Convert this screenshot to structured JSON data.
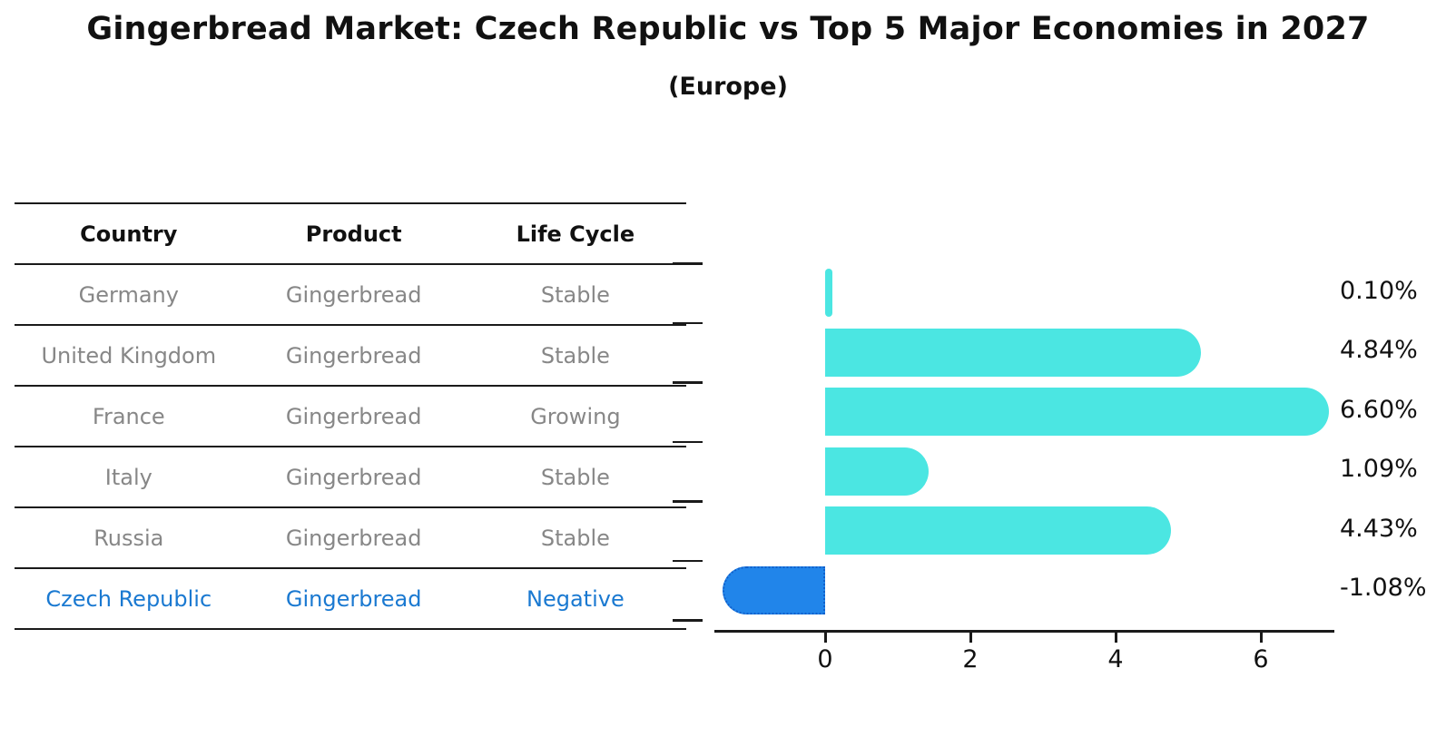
{
  "chart_data": {
    "type": "bar",
    "orientation": "horizontal",
    "title": "Gingerbread Market: Czech Republic vs Top 5 Major Economies in 2027",
    "subtitle": "(Europe)",
    "categories": [
      "Germany",
      "United Kingdom",
      "France",
      "Italy",
      "Russia",
      "Czech Republic"
    ],
    "values": [
      0.1,
      4.84,
      6.6,
      1.09,
      4.43,
      -1.08
    ],
    "value_labels": [
      "0.10%",
      "4.84%",
      "6.60%",
      "1.09%",
      "4.43%",
      "-1.08%"
    ],
    "x_ticks": [
      "0",
      "2",
      "4",
      "6"
    ],
    "x_tick_values": [
      0,
      2,
      4,
      6
    ],
    "xlim": [
      -1.55,
      7.0
    ],
    "grid": false,
    "legend": false,
    "bar_color": "#4BE6E2",
    "highlight_color": "#2185EA",
    "highlight_border_color": "#1160CB",
    "highlight_index": 5
  },
  "table": {
    "headers": [
      "Country",
      "Product",
      "Life Cycle"
    ],
    "rows": [
      {
        "country": "Germany",
        "product": "Gingerbread",
        "life_cycle": "Stable",
        "highlight": false
      },
      {
        "country": "United Kingdom",
        "product": "Gingerbread",
        "life_cycle": "Stable",
        "highlight": false
      },
      {
        "country": "France",
        "product": "Gingerbread",
        "life_cycle": "Growing",
        "highlight": false
      },
      {
        "country": "Italy",
        "product": "Gingerbread",
        "life_cycle": "Stable",
        "highlight": false
      },
      {
        "country": "Russia",
        "product": "Gingerbread",
        "life_cycle": "Stable",
        "highlight": false
      },
      {
        "country": "Czech Republic",
        "product": "Gingerbread",
        "life_cycle": "Negative",
        "highlight": true
      }
    ]
  },
  "colors": {
    "text_primary": "#111111",
    "text_muted": "#878787",
    "highlight_text": "#1A79D1",
    "axis": "#1a1a1a"
  }
}
